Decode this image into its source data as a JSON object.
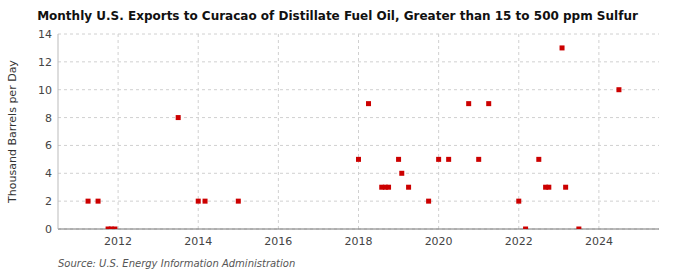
{
  "chart_data": {
    "type": "scatter",
    "title": "Monthly U.S. Exports to Curacao of Distillate Fuel Oil, Greater than 15 to 500 ppm Sulfur",
    "ylabel": "Thousand Barrels per Day",
    "annotations": [
      "Source: U.S. Energy Information Administration"
    ],
    "color": "#cc0000",
    "marker": "square",
    "grid": true,
    "xlim": [
      2010.5,
      2025.5
    ],
    "ylim": [
      0,
      14
    ],
    "xticks": [
      2012,
      2014,
      2016,
      2018,
      2020,
      2022,
      2024
    ],
    "yticks": [
      0,
      2,
      4,
      6,
      8,
      10,
      12,
      14
    ],
    "x": [
      2011.25,
      2011.5,
      2011.75,
      2011.83,
      2011.92,
      2013.5,
      2014.0,
      2014.17,
      2015.0,
      2018.0,
      2018.25,
      2018.58,
      2018.67,
      2018.75,
      2019.0,
      2019.08,
      2019.25,
      2019.75,
      2020.0,
      2020.25,
      2020.75,
      2021.0,
      2021.25,
      2022.0,
      2022.17,
      2022.5,
      2022.67,
      2022.75,
      2023.08,
      2023.17,
      2023.5,
      2024.5
    ],
    "values": [
      2,
      2,
      0,
      0,
      0,
      8,
      2,
      2,
      2,
      5,
      9,
      3,
      3,
      3,
      5,
      4,
      3,
      2,
      5,
      5,
      9,
      5,
      9,
      2,
      0,
      5,
      3,
      3,
      13,
      3,
      0,
      10
    ]
  }
}
